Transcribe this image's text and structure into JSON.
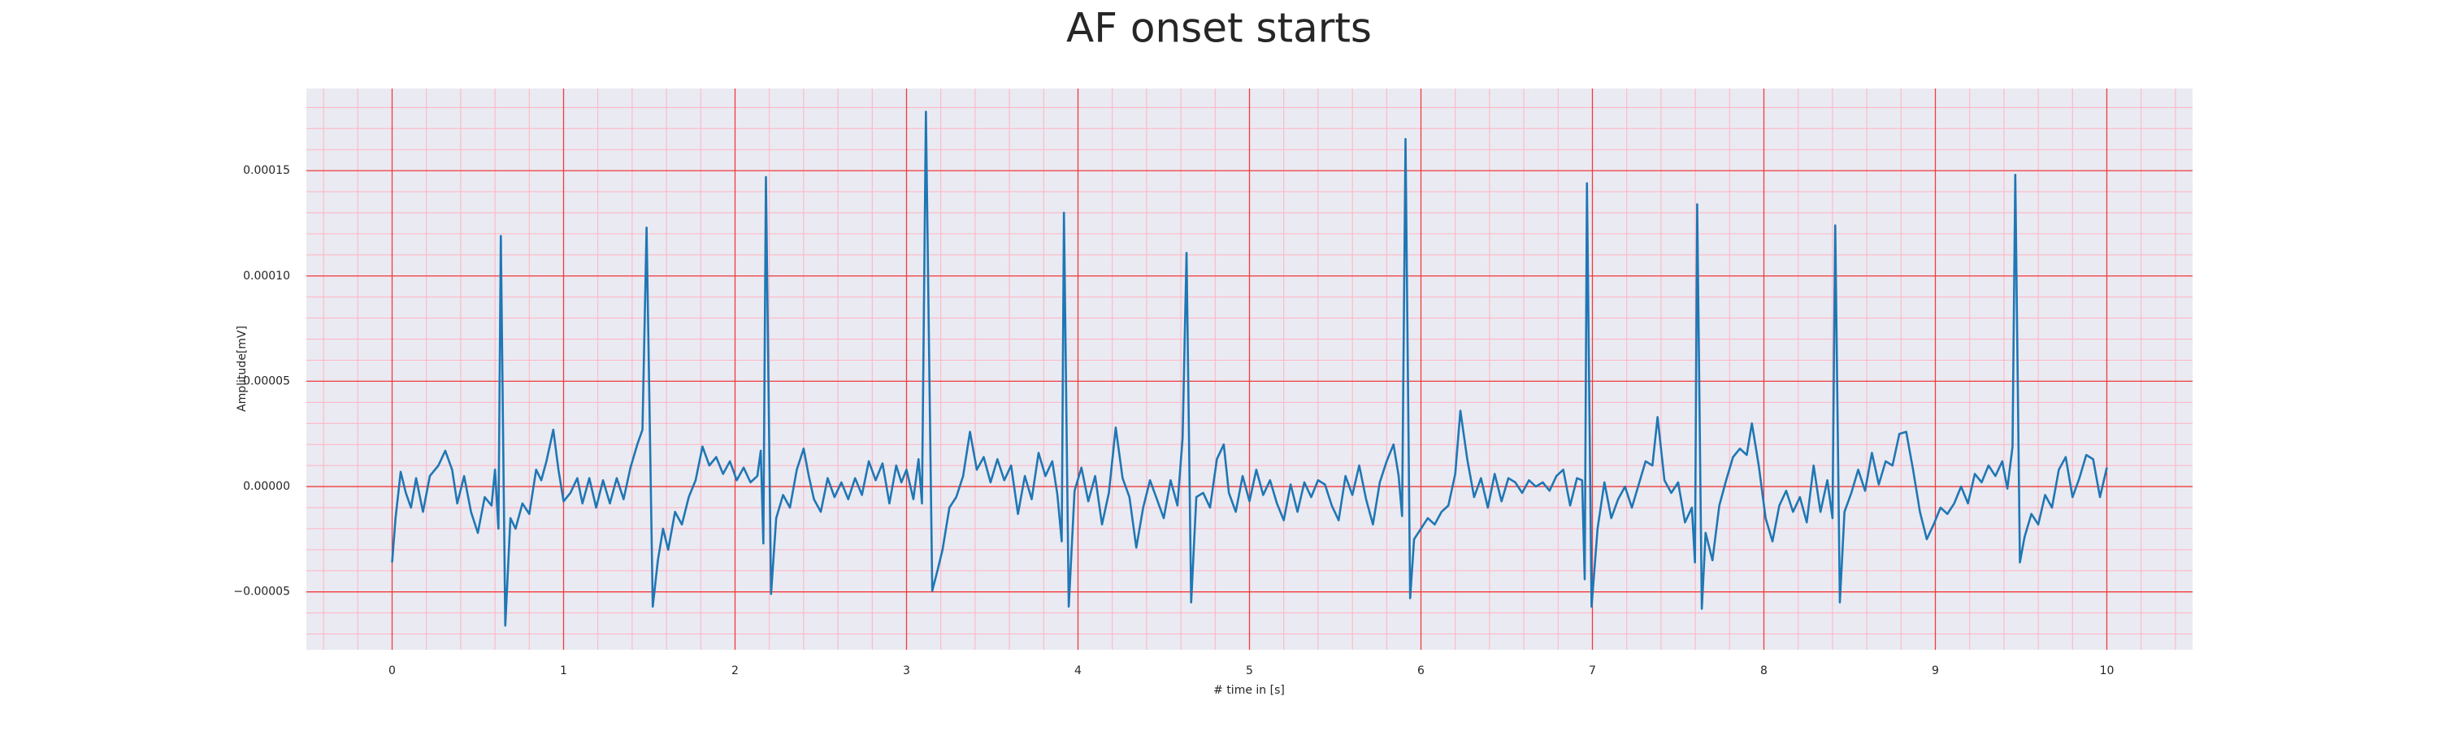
{
  "chart_data": {
    "type": "line",
    "title": "AF onset starts",
    "xlabel": "# time in [s]",
    "ylabel": "Amplitude[mV]",
    "color": "#1f77b4",
    "xlim": [
      -0.5,
      10.5
    ],
    "ylim": [
      -7.75e-05,
      0.000189
    ],
    "xticks": [
      0,
      1,
      2,
      3,
      4,
      5,
      6,
      7,
      8,
      9,
      10
    ],
    "yticks": [
      {
        "value": -5e-05,
        "label": "−0.00005"
      },
      {
        "value": 0,
        "label": "0.00000"
      },
      {
        "value": 5e-05,
        "label": "0.00005"
      },
      {
        "value": 0.0001,
        "label": "0.00010"
      },
      {
        "value": 0.00015,
        "label": "0.00015"
      }
    ],
    "grid": true,
    "minor_grid": {
      "x_step": 0.2,
      "y_step": 1e-05
    },
    "x": [
      0,
      0.02,
      0.05,
      0.08,
      0.11,
      0.14,
      0.18,
      0.22,
      0.27,
      0.31,
      0.35,
      0.38,
      0.42,
      0.46,
      0.5,
      0.54,
      0.58,
      0.6,
      0.62,
      0.634,
      0.66,
      0.69,
      0.72,
      0.76,
      0.8,
      0.84,
      0.87,
      0.9,
      0.94,
      0.97,
      1.0,
      1.04,
      1.08,
      1.11,
      1.15,
      1.19,
      1.23,
      1.27,
      1.31,
      1.35,
      1.39,
      1.43,
      1.46,
      1.484,
      1.52,
      1.55,
      1.58,
      1.61,
      1.65,
      1.69,
      1.73,
      1.77,
      1.81,
      1.85,
      1.89,
      1.93,
      1.97,
      2.01,
      2.05,
      2.09,
      2.13,
      2.15,
      2.165,
      2.18,
      2.21,
      2.24,
      2.28,
      2.32,
      2.36,
      2.4,
      2.43,
      2.46,
      2.5,
      2.54,
      2.58,
      2.62,
      2.66,
      2.7,
      2.74,
      2.78,
      2.82,
      2.86,
      2.9,
      2.94,
      2.97,
      3.0,
      3.04,
      3.07,
      3.09,
      3.113,
      3.15,
      3.18,
      3.21,
      3.25,
      3.29,
      3.33,
      3.37,
      3.41,
      3.45,
      3.49,
      3.53,
      3.57,
      3.61,
      3.65,
      3.69,
      3.73,
      3.77,
      3.81,
      3.85,
      3.88,
      3.905,
      3.918,
      3.946,
      3.98,
      4.02,
      4.06,
      4.1,
      4.14,
      4.18,
      4.22,
      4.26,
      4.3,
      4.34,
      4.38,
      4.42,
      4.46,
      4.5,
      4.54,
      4.58,
      4.61,
      4.633,
      4.66,
      4.69,
      4.73,
      4.77,
      4.81,
      4.85,
      4.88,
      4.92,
      4.96,
      5.0,
      5.04,
      5.08,
      5.12,
      5.16,
      5.2,
      5.24,
      5.28,
      5.32,
      5.36,
      5.4,
      5.44,
      5.48,
      5.52,
      5.56,
      5.6,
      5.64,
      5.68,
      5.72,
      5.76,
      5.8,
      5.84,
      5.87,
      5.89,
      5.91,
      5.937,
      5.96,
      6.0,
      6.04,
      6.08,
      6.12,
      6.16,
      6.2,
      6.23,
      6.27,
      6.31,
      6.35,
      6.39,
      6.43,
      6.47,
      6.51,
      6.55,
      6.59,
      6.63,
      6.67,
      6.71,
      6.75,
      6.79,
      6.83,
      6.87,
      6.91,
      6.94,
      6.955,
      6.968,
      6.995,
      7.03,
      7.07,
      7.11,
      7.15,
      7.19,
      7.23,
      7.27,
      7.31,
      7.35,
      7.38,
      7.42,
      7.46,
      7.5,
      7.54,
      7.58,
      7.598,
      7.611,
      7.638,
      7.66,
      7.7,
      7.74,
      7.78,
      7.82,
      7.86,
      7.9,
      7.93,
      7.97,
      8.01,
      8.05,
      8.09,
      8.13,
      8.17,
      8.21,
      8.25,
      8.29,
      8.33,
      8.37,
      8.4,
      8.416,
      8.443,
      8.47,
      8.51,
      8.55,
      8.59,
      8.63,
      8.67,
      8.71,
      8.75,
      8.79,
      8.83,
      8.87,
      8.91,
      8.95,
      8.99,
      9.03,
      9.07,
      9.11,
      9.15,
      9.19,
      9.23,
      9.27,
      9.31,
      9.35,
      9.39,
      9.42,
      9.45,
      9.466,
      9.493,
      9.52,
      9.56,
      9.6,
      9.64,
      9.68,
      9.72,
      9.76,
      9.8,
      9.84,
      9.88,
      9.92,
      9.96,
      10.0
    ],
    "values": [
      -3.6e-05,
      -1.5e-05,
      7e-06,
      -3e-06,
      -1e-05,
      4e-06,
      -1.2e-05,
      5e-06,
      1e-05,
      1.7e-05,
      8e-06,
      -8e-06,
      5e-06,
      -1.2e-05,
      -2.2e-05,
      -5e-06,
      -9e-06,
      8e-06,
      -2e-05,
      0.000119,
      -6.6e-05,
      -1.5e-05,
      -2e-05,
      -8e-06,
      -1.3e-05,
      8e-06,
      3e-06,
      1.2e-05,
      2.7e-05,
      8e-06,
      -7e-06,
      -3e-06,
      4e-06,
      -8e-06,
      4e-06,
      -1e-05,
      3e-06,
      -8e-06,
      4e-06,
      -6e-06,
      9e-06,
      2e-05,
      2.7e-05,
      0.000123,
      -5.7e-05,
      -3.5e-05,
      -2e-05,
      -3e-05,
      -1.2e-05,
      -1.8e-05,
      -5e-06,
      3e-06,
      1.9e-05,
      1e-05,
      1.4e-05,
      6e-06,
      1.2e-05,
      3e-06,
      9e-06,
      2e-06,
      5e-06,
      1.7e-05,
      -2.7e-05,
      0.000147,
      -5.1e-05,
      -1.5e-05,
      -4e-06,
      -1e-05,
      8e-06,
      1.8e-05,
      5e-06,
      -6e-06,
      -1.2e-05,
      4e-06,
      -5e-06,
      2e-06,
      -6e-06,
      4e-06,
      -4e-06,
      1.2e-05,
      3e-06,
      1.1e-05,
      -8e-06,
      1e-05,
      2e-06,
      8e-06,
      -6e-06,
      1.3e-05,
      -8e-06,
      0.000178,
      -4.95e-05,
      -4e-05,
      -3e-05,
      -1e-05,
      -5e-06,
      5e-06,
      2.6e-05,
      8e-06,
      1.4e-05,
      2e-06,
      1.3e-05,
      3e-06,
      1e-05,
      -1.3e-05,
      5e-06,
      -6e-06,
      1.6e-05,
      5e-06,
      1.2e-05,
      -4e-06,
      -2.6e-05,
      0.00013,
      -5.7e-05,
      -2e-06,
      9e-06,
      -7e-06,
      5e-06,
      -1.8e-05,
      -3e-06,
      2.8e-05,
      4e-06,
      -5e-06,
      -2.9e-05,
      -1e-05,
      3e-06,
      -6e-06,
      -1.5e-05,
      3e-06,
      -9e-06,
      2.3e-05,
      0.000111,
      -5.5e-05,
      -5e-06,
      -3e-06,
      -1e-05,
      1.3e-05,
      2e-05,
      -3e-06,
      -1.2e-05,
      5e-06,
      -7e-06,
      8e-06,
      -4e-06,
      3e-06,
      -8e-06,
      -1.6e-05,
      1e-06,
      -1.2e-05,
      2e-06,
      -5e-06,
      3e-06,
      1e-06,
      -9e-06,
      -1.6e-05,
      5e-06,
      -4e-06,
      1e-05,
      -6e-06,
      -1.8e-05,
      2e-06,
      1.2e-05,
      2e-05,
      5e-06,
      -1.4e-05,
      0.000165,
      -5.3e-05,
      -2.5e-05,
      -2e-05,
      -1.5e-05,
      -1.8e-05,
      -1.2e-05,
      -9e-06,
      6e-06,
      3.6e-05,
      1.3e-05,
      -5e-06,
      4e-06,
      -1e-05,
      6e-06,
      -7e-06,
      4e-06,
      2e-06,
      -3e-06,
      3e-06,
      0,
      2e-06,
      -2e-06,
      5e-06,
      8e-06,
      -9e-06,
      4e-06,
      3e-06,
      -4.4e-05,
      0.000144,
      -5.7e-05,
      -2e-05,
      2e-06,
      -1.5e-05,
      -6e-06,
      0,
      -1e-05,
      1e-06,
      1.2e-05,
      1e-05,
      3.3e-05,
      3e-06,
      -3e-06,
      2e-06,
      -1.7e-05,
      -1e-05,
      -3.6e-05,
      0.000134,
      -5.8e-05,
      -2.2e-05,
      -3.5e-05,
      -9e-06,
      3e-06,
      1.4e-05,
      1.8e-05,
      1.5e-05,
      3e-05,
      1e-05,
      -1.5e-05,
      -2.6e-05,
      -9e-06,
      -2e-06,
      -1.2e-05,
      -5e-06,
      -1.7e-05,
      1e-05,
      -1.2e-05,
      3e-06,
      -1.5e-05,
      0.000124,
      -5.5e-05,
      -1.2e-05,
      -3e-06,
      8e-06,
      -2e-06,
      1.6e-05,
      1e-06,
      1.2e-05,
      1e-05,
      2.5e-05,
      2.6e-05,
      8e-06,
      -1.2e-05,
      -2.5e-05,
      -1.8e-05,
      -1e-05,
      -1.3e-05,
      -8e-06,
      0,
      -8e-06,
      6e-06,
      2e-06,
      1e-05,
      5e-06,
      1.2e-05,
      -1e-06,
      1.9e-05,
      0.000148,
      -3.6e-05,
      -2.4e-05,
      -1.3e-05,
      -1.8e-05,
      -4e-06,
      -1e-05,
      8e-06,
      1.4e-05,
      -5e-06,
      4e-06,
      1.5e-05,
      1.3e-05,
      -5e-06,
      9e-06
    ]
  }
}
